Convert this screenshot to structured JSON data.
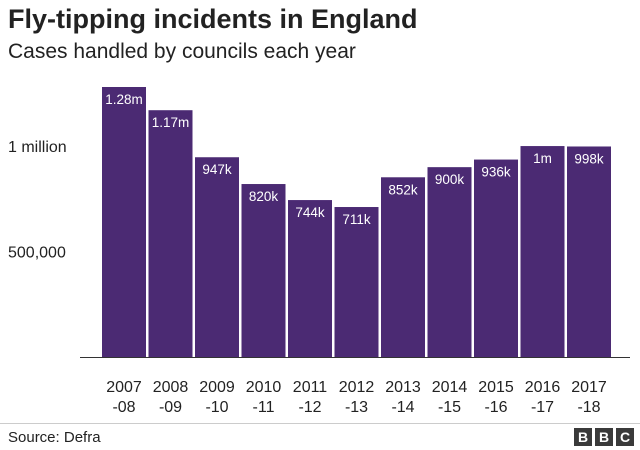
{
  "header": {
    "title": "Fly-tipping incidents in England",
    "subtitle": "Cases handled by councils each year"
  },
  "footer": {
    "source": "Source: Defra",
    "logo_letters": [
      "B",
      "B",
      "C"
    ]
  },
  "colors": {
    "bar": "#4b2a73",
    "bar_label": "#ffffff",
    "axis_text": "#222222"
  },
  "chart_data": {
    "type": "bar",
    "title": "Fly-tipping incidents in England",
    "subtitle": "Cases handled by councils each year",
    "categories": [
      "2007-08",
      "2008-09",
      "2009-10",
      "2010-11",
      "2011-12",
      "2012-13",
      "2013-14",
      "2014-15",
      "2015-16",
      "2016-17",
      "2017-18"
    ],
    "category_labels": [
      [
        "2007",
        "-08"
      ],
      [
        "2008",
        "-09"
      ],
      [
        "2009",
        "-10"
      ],
      [
        "2010",
        "-11"
      ],
      [
        "2011",
        "-12"
      ],
      [
        "2012",
        "-13"
      ],
      [
        "2013",
        "-14"
      ],
      [
        "2014",
        "-15"
      ],
      [
        "2015",
        "-16"
      ],
      [
        "2016",
        "-17"
      ],
      [
        "2017",
        "-18"
      ]
    ],
    "values": [
      1280000,
      1170000,
      947000,
      820000,
      744000,
      711000,
      852000,
      900000,
      936000,
      1000000,
      998000
    ],
    "data_labels": [
      "1.28m",
      "1.17m",
      "947k",
      "820k",
      "744k",
      "711k",
      "852k",
      "900k",
      "936k",
      "1m",
      "998k"
    ],
    "y_ticks": [
      {
        "value": 500000,
        "label": "500,000"
      },
      {
        "value": 1000000,
        "label": "1 million"
      }
    ],
    "ylim": [
      0,
      1300000
    ],
    "grid": false,
    "legend": "none"
  }
}
